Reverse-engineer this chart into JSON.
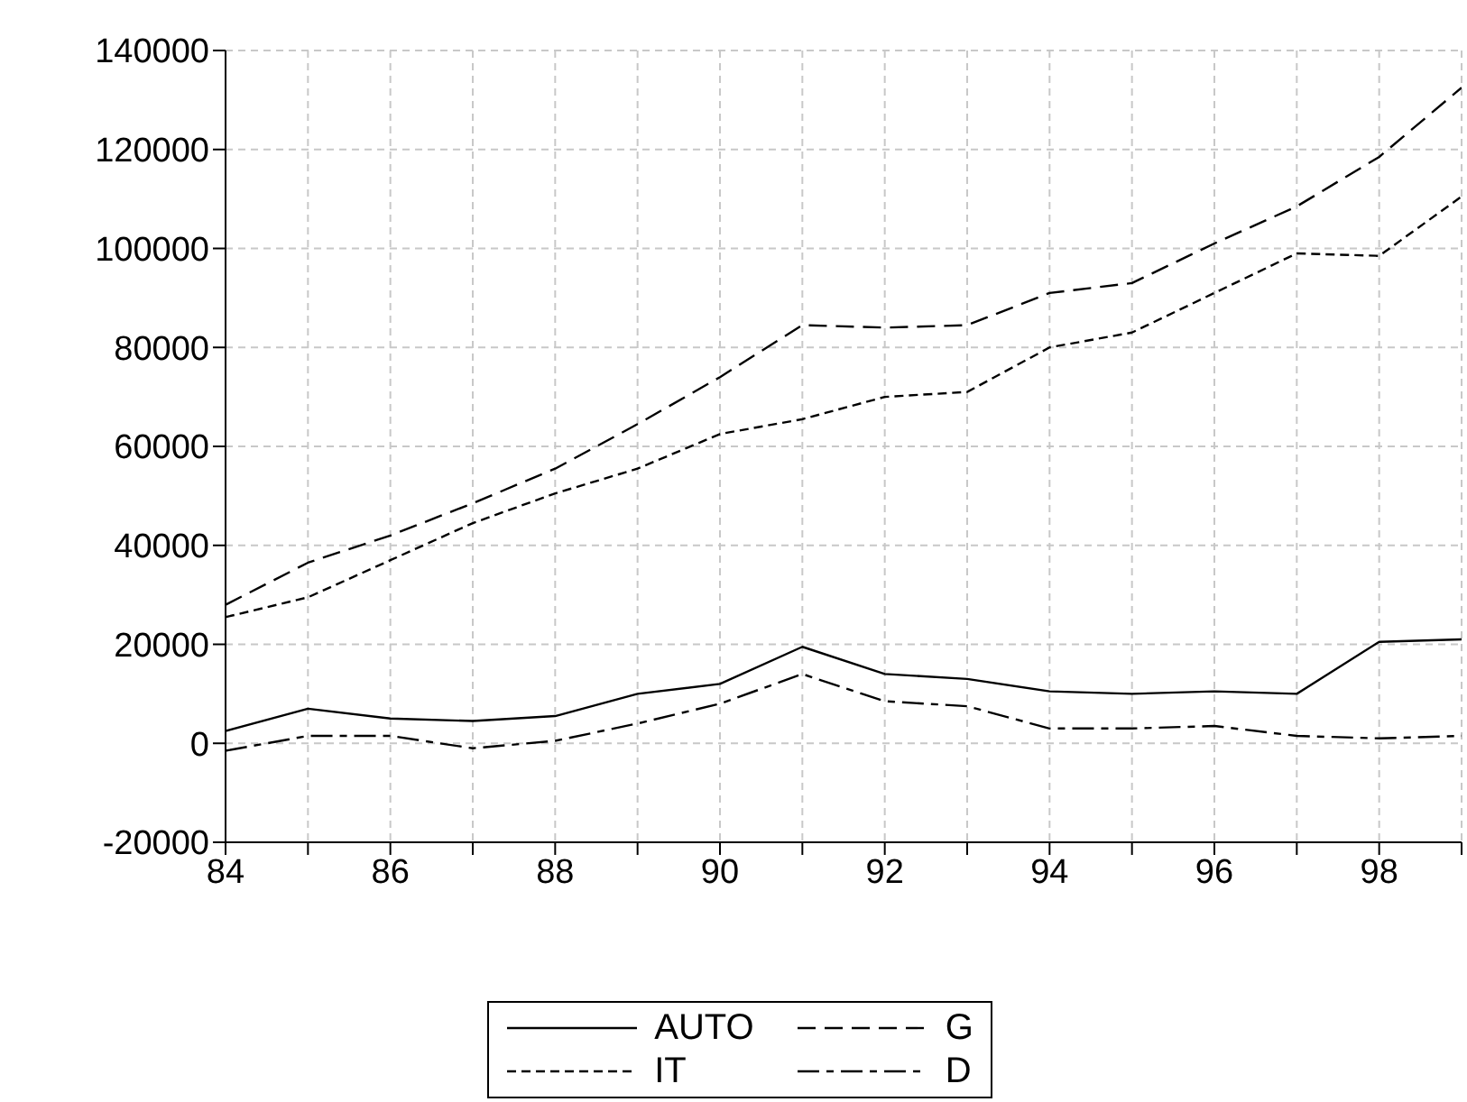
{
  "chart_data": {
    "type": "line",
    "x": [
      84,
      85,
      86,
      87,
      88,
      89,
      90,
      91,
      92,
      93,
      94,
      95,
      96,
      97,
      98,
      99
    ],
    "series": [
      {
        "name": "AUTO",
        "color": "#000000",
        "line_style": "solid",
        "values": [
          2500,
          7000,
          5000,
          4500,
          5500,
          10000,
          12000,
          19500,
          14000,
          13000,
          10500,
          10000,
          10500,
          10000,
          20500,
          21000
        ]
      },
      {
        "name": "G",
        "color": "#000000",
        "line_style": "dashed",
        "values": [
          28000,
          36500,
          42000,
          48500,
          55500,
          64500,
          74000,
          84500,
          84000,
          84500,
          91000,
          93000,
          101000,
          108500,
          118500,
          132500
        ]
      },
      {
        "name": "IT",
        "color": "#000000",
        "line_style": "dotted",
        "values": [
          25500,
          29500,
          37000,
          44500,
          50500,
          55500,
          62500,
          65500,
          70000,
          71000,
          80000,
          83000,
          91000,
          99000,
          98500,
          110500
        ]
      },
      {
        "name": "D",
        "color": "#000000",
        "line_style": "dashdot",
        "values": [
          -1500,
          1500,
          1500,
          -1000,
          500,
          4000,
          8000,
          14000,
          8500,
          7500,
          3000,
          3000,
          3500,
          1500,
          1000,
          1500
        ]
      }
    ],
    "xlim": [
      84,
      99
    ],
    "xticks": [
      84,
      {
        "value": 85,
        "label": null
      },
      86,
      {
        "value": 87,
        "label": null
      },
      88,
      {
        "value": 89,
        "label": null
      },
      90,
      {
        "value": 91,
        "label": null
      },
      92,
      {
        "value": 93,
        "label": null
      },
      94,
      {
        "value": 95,
        "label": null
      },
      96,
      {
        "value": 97,
        "label": null
      },
      98,
      {
        "value": 99,
        "label": null
      }
    ],
    "ylim": [
      -20000,
      140000
    ],
    "yticks": [
      -20000,
      0,
      20000,
      40000,
      60000,
      80000,
      100000,
      120000,
      140000
    ],
    "grid": true,
    "legend": "bottom"
  }
}
